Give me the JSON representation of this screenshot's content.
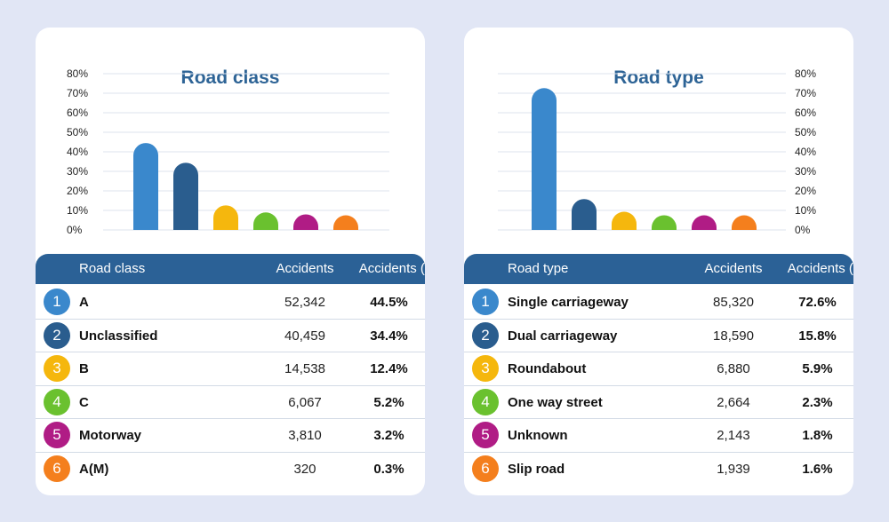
{
  "chart_data": [
    {
      "type": "bar",
      "title": "Road class",
      "axis_side": "left",
      "ylim": [
        0,
        80
      ],
      "yticks": [
        "80%",
        "70%",
        "60%",
        "50%",
        "40%",
        "30%",
        "20%",
        "10%",
        "0%"
      ],
      "grid": true,
      "categories": [
        "A",
        "Unclassified",
        "B",
        "C",
        "Motorway",
        "A(M)"
      ],
      "values": [
        44.5,
        34.4,
        12.4,
        5.2,
        3.2,
        0.3
      ],
      "colors": [
        "#3a88cc",
        "#2a5d8e",
        "#f5b70d",
        "#6ac12f",
        "#b01c85",
        "#f47f1d"
      ],
      "table": {
        "headers": [
          "Road class",
          "Accidents",
          "Accidents (%)"
        ],
        "rows": [
          {
            "rank": "1",
            "name": "A",
            "accidents": "52,342",
            "pct": "44.5%"
          },
          {
            "rank": "2",
            "name": "Unclassified",
            "accidents": "40,459",
            "pct": "34.4%"
          },
          {
            "rank": "3",
            "name": "B",
            "accidents": "14,538",
            "pct": "12.4%"
          },
          {
            "rank": "4",
            "name": "C",
            "accidents": "6,067",
            "pct": "5.2%"
          },
          {
            "rank": "5",
            "name": "Motorway",
            "accidents": "3,810",
            "pct": "3.2%"
          },
          {
            "rank": "6",
            "name": "A(M)",
            "accidents": "320",
            "pct": "0.3%"
          }
        ]
      }
    },
    {
      "type": "bar",
      "title": "Road type",
      "axis_side": "right",
      "ylim": [
        0,
        80
      ],
      "yticks": [
        "80%",
        "70%",
        "60%",
        "50%",
        "40%",
        "30%",
        "20%",
        "10%",
        "0%"
      ],
      "grid": true,
      "categories": [
        "Single carriageway",
        "Dual carriageway",
        "Roundabout",
        "One way street",
        "Unknown",
        "Slip road"
      ],
      "values": [
        72.6,
        15.8,
        5.9,
        2.3,
        1.8,
        1.6
      ],
      "colors": [
        "#3a88cc",
        "#2a5d8e",
        "#f5b70d",
        "#6ac12f",
        "#b01c85",
        "#f47f1d"
      ],
      "table": {
        "headers": [
          "Road type",
          "Accidents",
          "Accidents (%)"
        ],
        "rows": [
          {
            "rank": "1",
            "name": "Single carriageway",
            "accidents": "85,320",
            "pct": "72.6%"
          },
          {
            "rank": "2",
            "name": "Dual carriageway",
            "accidents": "18,590",
            "pct": "15.8%"
          },
          {
            "rank": "3",
            "name": "Roundabout",
            "accidents": "6,880",
            "pct": "5.9%"
          },
          {
            "rank": "4",
            "name": "One way street",
            "accidents": "2,664",
            "pct": "2.3%"
          },
          {
            "rank": "5",
            "name": "Unknown",
            "accidents": "2,143",
            "pct": "1.8%"
          },
          {
            "rank": "6",
            "name": "Slip road",
            "accidents": "1,939",
            "pct": "1.6%"
          }
        ]
      }
    }
  ]
}
